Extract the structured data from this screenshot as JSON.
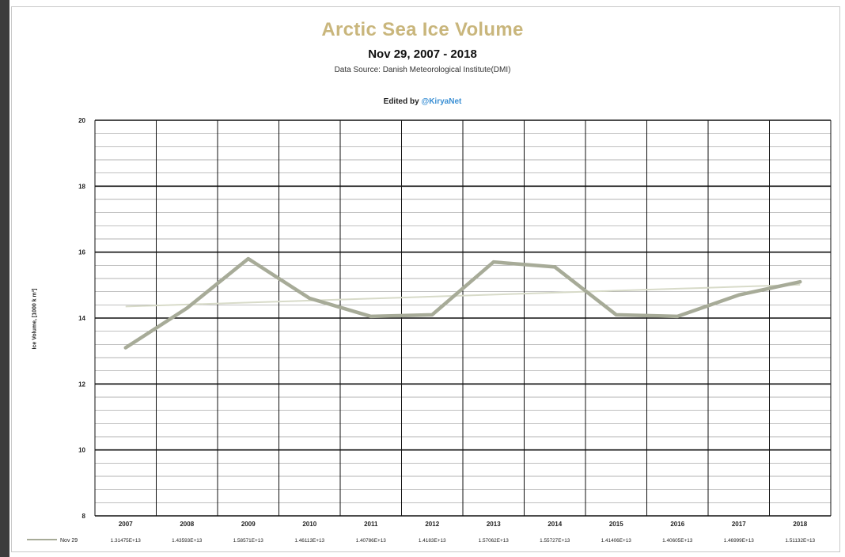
{
  "chart_data": {
    "type": "line",
    "title": "Arctic Sea Ice Volume",
    "subtitle": "Nov 29, 2007 - 2018",
    "source": "Data Source: Danish Meteorological Institute(DMI)",
    "credit_prefix": "Edited by",
    "credit_handle": "@KiryaNet",
    "ylabel": "Ice Volume, [1000 k m³]",
    "xlabel": "",
    "categories": [
      "2007",
      "2008",
      "2009",
      "2010",
      "2011",
      "2012",
      "2013",
      "2014",
      "2015",
      "2016",
      "2017",
      "2018"
    ],
    "y_ticks": [
      "8",
      "10",
      "12",
      "14",
      "16",
      "18",
      "20"
    ],
    "ylim": [
      8,
      20
    ],
    "grid": true,
    "legend": "bottom data table",
    "series": [
      {
        "name": "Nov 29",
        "values": [
          13.1,
          14.3,
          15.8,
          14.6,
          14.05,
          14.1,
          15.7,
          15.55,
          14.1,
          14.05,
          14.7,
          15.1
        ],
        "table_values": [
          "1.31475E+13",
          "1.43593E+13",
          "1.58571E+13",
          "1.46113E+13",
          "1.40786E+13",
          "1.4183E+13",
          "1.57062E+13",
          "1.55727E+13",
          "1.41406E+13",
          "1.40605E+13",
          "1.46999E+13",
          "1.51132E+13"
        ],
        "color": "#a7ab98"
      }
    ],
    "trend": {
      "values": [
        14.35,
        14.41,
        14.47,
        14.53,
        14.59,
        14.65,
        14.71,
        14.77,
        14.83,
        14.89,
        14.95,
        15.01
      ],
      "color": "#d8dbc9"
    }
  },
  "colors": {
    "title": "#c9b67c",
    "handle": "#3a8fd4",
    "grid_major": "#111111",
    "grid_minor": "#9a9a9a"
  }
}
